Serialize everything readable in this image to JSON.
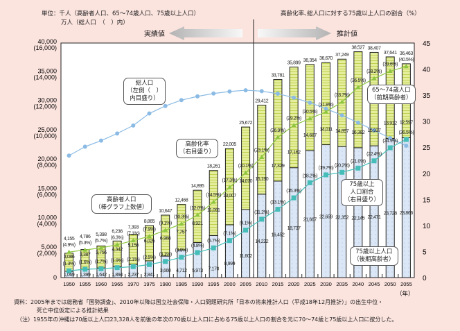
{
  "header": {
    "unit_line1": "単位：千人（高齢者人口、65～74歳人口、75歳以上人口）",
    "unit_line2": "万人（総人口　（　）内）",
    "right_unit": "高齢化率､総人口に対する75歳以上人口の割合（%）",
    "actual_label": "実績値",
    "estimate_label": "推計値"
  },
  "callouts": {
    "total_pop": [
      "総人口",
      "（左側（　）",
      "内目盛り）"
    ],
    "aging_rate": [
      "高齢化率",
      "（右目盛り）"
    ],
    "elderly_pop": [
      "高齢者人口",
      "（棒グラフ上数値）"
    ],
    "age_65_74": [
      "65～74歳人口",
      "（前期高齢者）"
    ],
    "share_75": [
      "75歳以上",
      "人口割合",
      "（右目盛り）"
    ],
    "age_75": [
      "75歳以上人口",
      "（後期高齢者）"
    ]
  },
  "footer": {
    "source_line1": "資料：2005年までは総務省「国勢調査」、2010年以降は国立社会保障・人口問題研究所「日本の将来推計人口（平成18年12月推計）」の出生中位・",
    "source_line2": "死亡中位仮定による推計結果",
    "note": "（注）1955年の沖縄は70歳以上人口23,328人を前後の年次の70歳以上人口に占める75歳以上人口の割合を元に70～74歳と75歳以上人口に按分した。"
  },
  "colors": {
    "bar_75plus": "#dbe7f6",
    "bar_65_74": "#e4ee9c",
    "aging_line": "#8dc63f",
    "share_line": "#45bdb8",
    "pop_line": "#8bbbe4"
  },
  "chart_data": {
    "type": "bar+line",
    "categories": [
      "1950",
      "1955",
      "1960",
      "1965",
      "1970",
      "1975",
      "1980",
      "1985",
      "1990",
      "1995",
      "2000",
      "2005",
      "2010",
      "2015",
      "2020",
      "2025",
      "2030",
      "2035",
      "2040",
      "2045",
      "2050",
      "2055"
    ],
    "xlabel": "（年）",
    "left_axis": {
      "ylim": [
        0,
        40000
      ],
      "ticks": [
        "0",
        "5,000",
        "10,000",
        "15,000",
        "20,000",
        "25,000",
        "30,000",
        "35,000",
        "40,000"
      ],
      "ticks_alt": [
        "",
        "(2,000)",
        "(4,000)",
        "(6,000)",
        "(8,000)",
        "(10,000)",
        "(12,000)",
        "(14,000)",
        "(16,000)"
      ]
    },
    "right_axis": {
      "ylim": [
        0,
        45
      ],
      "ticks": [
        "0",
        "5",
        "10",
        "15",
        "20",
        "25",
        "30",
        "35",
        "40",
        "45"
      ]
    },
    "series": [
      {
        "name": "75歳以上人口（後期高齢者）",
        "type": "stacked-bar",
        "values": [
          1069,
          1399,
          1642,
          1894,
          2237,
          2841,
          3660,
          4712,
          5973,
          7170,
          8999,
          11602,
          14222,
          16452,
          18737,
          21667,
          22659,
          22352,
          22145,
          22471,
          23728,
          23866
        ]
      },
      {
        "name": "65～74歳人口（前期高齢者）",
        "type": "stacked-bar",
        "values": [
          3086,
          3387,
          3756,
          4342,
          5156,
          6025,
          6988,
          7757,
          8921,
          11091,
          13007,
          14070,
          15190,
          17329,
          17162,
          14687,
          14011,
          14897,
          16382,
          15937,
          13912,
          12597
        ]
      },
      {
        "name": "高齢者人口（棒グラフ上数値）",
        "type": "label",
        "values": [
          4155,
          4786,
          5398,
          6236,
          7393,
          8865,
          10647,
          12468,
          14895,
          18261,
          22005,
          25672,
          29412,
          33781,
          35899,
          36354,
          36670,
          37249,
          38527,
          38407,
          37641,
          36463
        ]
      },
      {
        "name": "高齢化率（右目盛り）",
        "type": "line",
        "axis": "right",
        "values": [
          4.9,
          5.3,
          5.7,
          6.3,
          7.1,
          7.9,
          9.1,
          10.3,
          12.0,
          14.5,
          17.3,
          20.1,
          23.1,
          26.9,
          29.2,
          30.5,
          31.8,
          33.7,
          36.5,
          38.2,
          39.6,
          40.5
        ]
      },
      {
        "name": "75歳以上人口割合（右目盛り）",
        "type": "line",
        "axis": "right",
        "values": [
          1.3,
          1.6,
          1.7,
          1.9,
          2.1,
          2.5,
          3.1,
          3.9,
          4.8,
          5.7,
          7.1,
          9.1,
          11.2,
          13.1,
          15.3,
          18.2,
          19.7,
          20.2,
          21.0,
          22.4,
          24.9,
          26.5
        ]
      },
      {
        "name": "総人口（左側（　）内目盛り）",
        "type": "line",
        "axis": "left-alt",
        "unit": "万人",
        "values": [
          8320,
          8928,
          9342,
          9828,
          10372,
          11194,
          11706,
          12105,
          12361,
          12557,
          12693,
          12777,
          12717,
          12543,
          12273,
          11927,
          11522,
          11068,
          10570,
          10044,
          9515,
          8993
        ]
      }
    ]
  }
}
